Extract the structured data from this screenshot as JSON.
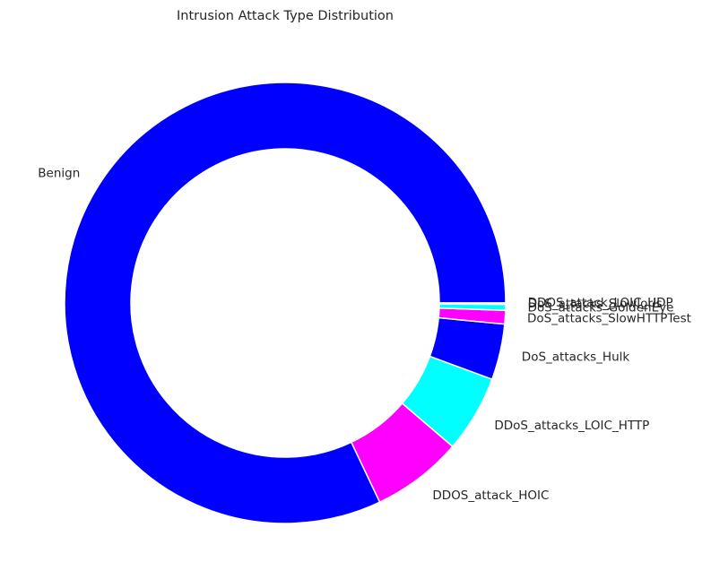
{
  "chart_data": {
    "type": "pie",
    "donut": true,
    "title": "Intrusion Attack Type Distribution",
    "slices": [
      {
        "label": "Benign",
        "value": 82.06,
        "color": "#0000ff"
      },
      {
        "label": "DDOS_attack_HOIC",
        "value": 6.66,
        "color": "#ff00ff"
      },
      {
        "label": "DDoS_attacks_LOIC_HTTP",
        "value": 5.66,
        "color": "#00ffff"
      },
      {
        "label": "DoS_attacks_Hulk",
        "value": 4.09,
        "color": "#0000ff"
      },
      {
        "label": "DoS_attacks_SlowHTTPTest",
        "value": 1.0,
        "color": "#ff00ff"
      },
      {
        "label": "DoS_attacks_GoldenEye",
        "value": 0.43,
        "color": "#00ffff"
      },
      {
        "label": "DoS_attacks_Slowloris",
        "value": 0.09,
        "color": "#0000ff"
      },
      {
        "label": "DDOS_attack_LOIC_UDP",
        "value": 0.01,
        "color": "#ff00ff"
      }
    ],
    "start_angle_deg": 0,
    "direction": "counterclockwise",
    "legend": "none",
    "grid": false
  }
}
